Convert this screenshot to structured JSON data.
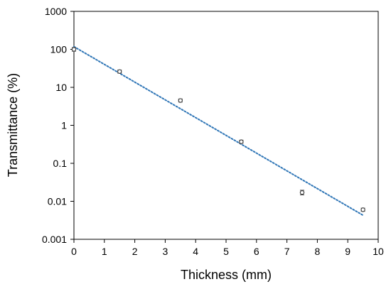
{
  "chart_data": {
    "type": "scatter",
    "title": "",
    "xlabel": "Thickness (mm)",
    "ylabel": "Transmittance (%)",
    "xlim": [
      0,
      10
    ],
    "ylim": [
      0.001,
      1000
    ],
    "y_scale": "log",
    "grid": false,
    "legend": "none",
    "x_ticks": [
      "0",
      "1",
      "2",
      "3",
      "4",
      "5",
      "6",
      "7",
      "8",
      "9",
      "10"
    ],
    "y_ticks": [
      "0.001",
      "0.01",
      "0.1",
      "1",
      "10",
      "100",
      "1000"
    ],
    "series": [
      {
        "x": [
          0,
          1.5,
          3.5,
          5.5,
          7.5,
          9.5
        ],
        "y": [
          100,
          26,
          4.5,
          0.37,
          0.017,
          0.006
        ],
        "y_err": [
          0.12,
          0.1,
          0.1,
          0.1,
          0.15,
          0.1
        ],
        "marker": "open-circle",
        "color": "#404040"
      }
    ],
    "trendline": {
      "style": "dotted",
      "color": "#2E75B6",
      "x": [
        0,
        9.5
      ],
      "y": [
        118,
        0.0043
      ]
    }
  }
}
